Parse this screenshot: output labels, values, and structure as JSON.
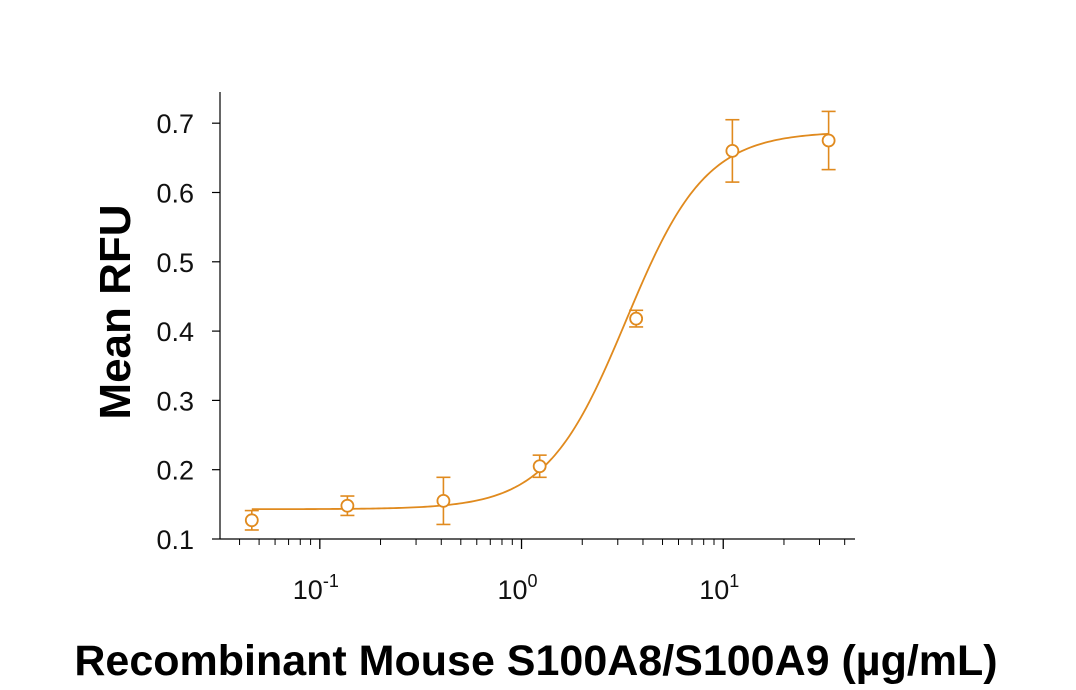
{
  "chart_data": {
    "type": "scatter",
    "xlabel": "Recombinant Mouse S100A8/S100A9 (µg/mL)",
    "ylabel": "Mean RFU",
    "xscale": "log",
    "xlim": [
      0.032,
      45
    ],
    "ylim": [
      0.1,
      0.745
    ],
    "xticks": [
      {
        "value": 0.1,
        "base": "10",
        "exp": "-1"
      },
      {
        "value": 1,
        "base": "10",
        "exp": "0"
      },
      {
        "value": 10,
        "base": "10",
        "exp": "1"
      }
    ],
    "yticks": [
      {
        "value": 0.1,
        "label": "0.1"
      },
      {
        "value": 0.2,
        "label": "0.2"
      },
      {
        "value": 0.3,
        "label": "0.3"
      },
      {
        "value": 0.4,
        "label": "0.4"
      },
      {
        "value": 0.5,
        "label": "0.5"
      },
      {
        "value": 0.6,
        "label": "0.6"
      },
      {
        "value": 0.7,
        "label": "0.7"
      }
    ],
    "grid": false,
    "legend": "none",
    "color": "#E08A1E",
    "series": [
      {
        "x": [
          0.046,
          0.137,
          0.41,
          1.23,
          3.7,
          11.1,
          33.3
        ],
        "y": [
          0.127,
          0.148,
          0.155,
          0.205,
          0.418,
          0.66,
          0.675
        ],
        "yerr": [
          0.014,
          0.014,
          0.034,
          0.016,
          0.012,
          0.045,
          0.042
        ]
      }
    ],
    "fit": {
      "model": "4PL",
      "bottom": 0.143,
      "top": 0.688,
      "ec50": 3.3,
      "hill": 2.2
    }
  }
}
